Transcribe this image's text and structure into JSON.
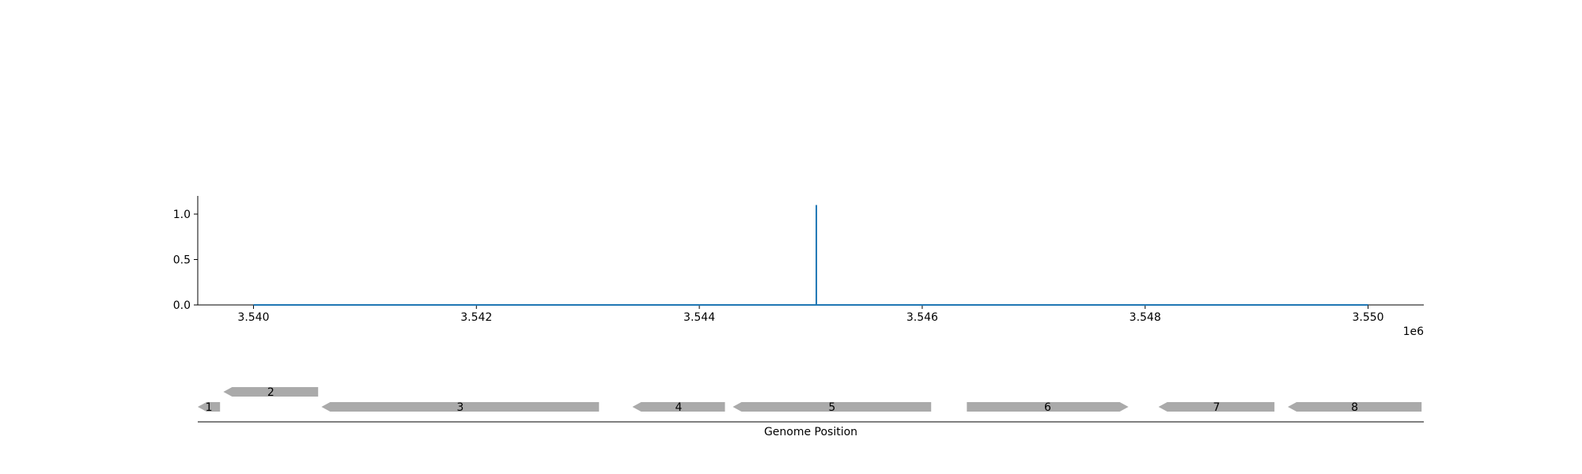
{
  "chart_data": [
    {
      "type": "line",
      "title": "",
      "xlabel": "",
      "ylabel": "",
      "x_offset_label": "1e6",
      "xlim": [
        3.5395,
        3.5505
      ],
      "ylim": [
        0,
        1.2
      ],
      "x_ticks": [
        3.54,
        3.542,
        3.544,
        3.546,
        3.548,
        3.55
      ],
      "x_tick_labels": [
        "3.540",
        "3.542",
        "3.544",
        "3.546",
        "3.548",
        "3.550"
      ],
      "y_ticks": [
        0.0,
        0.5,
        1.0
      ],
      "y_tick_labels": [
        "0.0",
        "0.5",
        "1.0"
      ],
      "grid": false,
      "color": "#1f77b4",
      "series": [
        {
          "x": [
            3.54,
            3.54505,
            3.54505,
            3.54505,
            3.55
          ],
          "y": [
            0,
            0,
            1.1,
            0,
            0
          ]
        }
      ]
    },
    {
      "type": "gene-track",
      "xlabel": "Genome Position",
      "color": "#aaaaaa",
      "genes": [
        {
          "label": "1",
          "start": 3.5395,
          "end": 3.5397,
          "strand": "-",
          "row": 0
        },
        {
          "label": "2",
          "start": 3.53973,
          "end": 3.54058,
          "strand": "-",
          "row": 1
        },
        {
          "label": "3",
          "start": 3.54061,
          "end": 3.5431,
          "strand": "-",
          "row": 0
        },
        {
          "label": "4",
          "start": 3.5434,
          "end": 3.54423,
          "strand": "-",
          "row": 0
        },
        {
          "label": "5",
          "start": 3.5443,
          "end": 3.54608,
          "strand": "-",
          "row": 0
        },
        {
          "label": "6",
          "start": 3.5464,
          "end": 3.54785,
          "strand": "+",
          "row": 0
        },
        {
          "label": "7",
          "start": 3.54812,
          "end": 3.54916,
          "strand": "-",
          "row": 0
        },
        {
          "label": "8",
          "start": 3.54928,
          "end": 3.55048,
          "strand": "-",
          "row": 0
        }
      ]
    }
  ]
}
